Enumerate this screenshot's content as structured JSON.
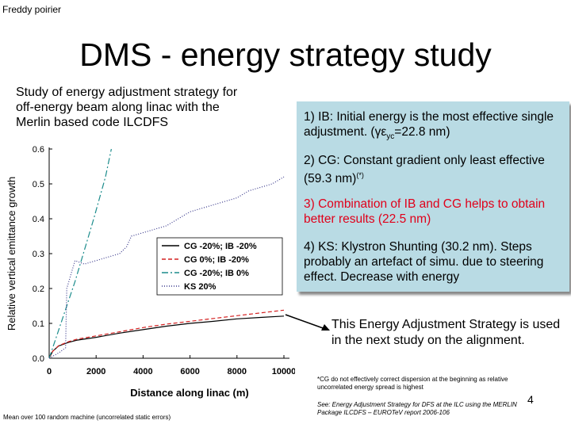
{
  "header": {
    "author": "Freddy poirier",
    "title": "DMS - energy strategy study"
  },
  "intro": {
    "text": "Study of energy adjustment strategy for off-energy beam along linac with the Merlin based code ILCDFS"
  },
  "results_box": {
    "p1": "1) IB: Initial energy is the most effective single adjustment. (γε",
    "p1_sub": "yc",
    "p1_end": "=22.8 nm)",
    "p2": "2) CG: Constant gradient only least effective (59.3 nm)",
    "p2_sup": "(*)",
    "p3": "3) Combination of IB and CG helps to obtain better results (22.5 nm)",
    "p4": "4) KS: Klystron Shunting (30.2 nm). Steps probably an artefact of simu. due to steering effect. Decrease with energy",
    "highlight_color": "#e0001a"
  },
  "conclusion": "This Energy Adjustment Strategy is used in the next study on the alignment.",
  "footnote": "*CG do not effectively correct dispersion at the beginning as relative uncorrelated energy spread is highest",
  "reference": "See: Energy Adjustment Strategy for DFS at the ILC using the MERLIN Package ILCDFS – EUROTeV report 2006-106",
  "page_number": "4",
  "caption": "Mean over 100 random machine (uncorrelated static errors)",
  "chart_data": {
    "type": "line",
    "xlabel": "Distance along linac (m)",
    "ylabel": "Relative vertical emittance growth",
    "xlim": [
      0,
      10000
    ],
    "ylim": [
      0,
      0.6
    ],
    "x_ticks": [
      "0",
      "2000",
      "4000",
      "6000",
      "8000",
      "10000"
    ],
    "y_ticks": [
      "0.0",
      "0.1",
      "0.2",
      "0.3",
      "0.4",
      "0.5",
      "0.6"
    ],
    "legend_position": "center-right",
    "series": [
      {
        "name": "CG -20%; IB -20%",
        "color": "#000000",
        "dash": "",
        "x": [
          0,
          150,
          400,
          800,
          1200,
          2000,
          3000,
          4000,
          5000,
          6000,
          7000,
          8000,
          9000,
          10000
        ],
        "y": [
          0.0,
          0.02,
          0.035,
          0.045,
          0.052,
          0.06,
          0.072,
          0.082,
          0.092,
          0.1,
          0.106,
          0.113,
          0.117,
          0.121
        ]
      },
      {
        "name": "CG 0%; IB -20%",
        "color": "#d42020",
        "dash": "5,3",
        "x": [
          0,
          150,
          400,
          800,
          1200,
          2000,
          3000,
          4000,
          5000,
          6000,
          7000,
          8000,
          9000,
          10000
        ],
        "y": [
          0.0,
          0.02,
          0.036,
          0.047,
          0.055,
          0.064,
          0.076,
          0.088,
          0.098,
          0.106,
          0.114,
          0.122,
          0.13,
          0.138
        ]
      },
      {
        "name": "CG -20%; IB 0%",
        "color": "#1c8c8c",
        "dash": "8,3,2,3",
        "x": [
          0,
          300,
          700,
          1100,
          1500,
          1900,
          2400,
          2650
        ],
        "y": [
          0.0,
          0.06,
          0.14,
          0.22,
          0.31,
          0.4,
          0.52,
          0.6
        ]
      },
      {
        "name": "KS 20%",
        "color": "#3a3a8c",
        "dash": "1,2",
        "x": [
          0,
          400,
          700,
          750,
          1100,
          1500,
          2000,
          2500,
          3000,
          3300,
          3500,
          4000,
          4500,
          5000,
          5500,
          6000,
          6500,
          7000,
          7500,
          8000,
          8500,
          9000,
          9500,
          10000
        ],
        "y": [
          0.0,
          0.015,
          0.03,
          0.2,
          0.28,
          0.27,
          0.28,
          0.29,
          0.3,
          0.32,
          0.35,
          0.36,
          0.37,
          0.38,
          0.4,
          0.42,
          0.43,
          0.44,
          0.45,
          0.46,
          0.48,
          0.49,
          0.5,
          0.52
        ]
      }
    ]
  }
}
